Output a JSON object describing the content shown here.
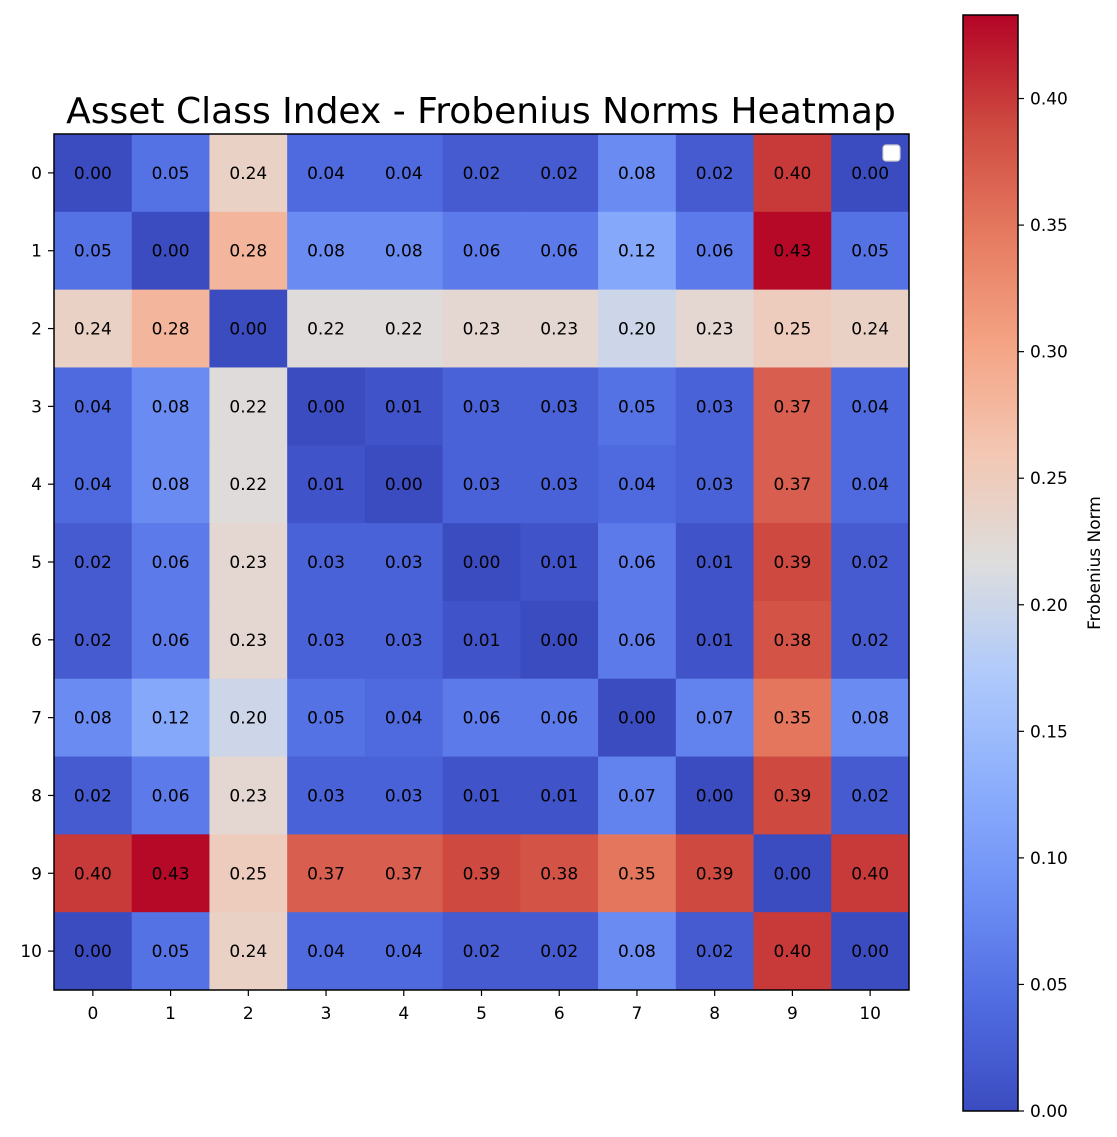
{
  "chart_data": {
    "type": "heatmap",
    "title": "Asset Class Index - Frobenius Norms Heatmap",
    "x_categories": [
      "0",
      "1",
      "2",
      "3",
      "4",
      "5",
      "6",
      "7",
      "8",
      "9",
      "10"
    ],
    "y_categories": [
      "0",
      "1",
      "2",
      "3",
      "4",
      "5",
      "6",
      "7",
      "8",
      "9",
      "10"
    ],
    "values": [
      [
        0.0,
        0.05,
        0.24,
        0.04,
        0.04,
        0.02,
        0.02,
        0.08,
        0.02,
        0.4,
        0.0
      ],
      [
        0.05,
        0.0,
        0.28,
        0.08,
        0.08,
        0.06,
        0.06,
        0.12,
        0.06,
        0.43,
        0.05
      ],
      [
        0.24,
        0.28,
        0.0,
        0.22,
        0.22,
        0.23,
        0.23,
        0.2,
        0.23,
        0.25,
        0.24
      ],
      [
        0.04,
        0.08,
        0.22,
        0.0,
        0.01,
        0.03,
        0.03,
        0.05,
        0.03,
        0.37,
        0.04
      ],
      [
        0.04,
        0.08,
        0.22,
        0.01,
        0.0,
        0.03,
        0.03,
        0.04,
        0.03,
        0.37,
        0.04
      ],
      [
        0.02,
        0.06,
        0.23,
        0.03,
        0.03,
        0.0,
        0.01,
        0.06,
        0.01,
        0.39,
        0.02
      ],
      [
        0.02,
        0.06,
        0.23,
        0.03,
        0.03,
        0.01,
        0.0,
        0.06,
        0.01,
        0.38,
        0.02
      ],
      [
        0.08,
        0.12,
        0.2,
        0.05,
        0.04,
        0.06,
        0.06,
        0.0,
        0.07,
        0.35,
        0.08
      ],
      [
        0.02,
        0.06,
        0.23,
        0.03,
        0.03,
        0.01,
        0.01,
        0.07,
        0.0,
        0.39,
        0.02
      ],
      [
        0.4,
        0.43,
        0.25,
        0.37,
        0.37,
        0.39,
        0.38,
        0.35,
        0.39,
        0.0,
        0.4
      ],
      [
        0.0,
        0.05,
        0.24,
        0.04,
        0.04,
        0.02,
        0.02,
        0.08,
        0.02,
        0.4,
        0.0
      ]
    ],
    "value_labels_format": "0.00",
    "colormap": "coolwarm",
    "color_range": [
      0.0,
      0.433
    ],
    "colorbar": {
      "label": "Frobenius Norm",
      "ticks": [
        0.0,
        0.05,
        0.1,
        0.15,
        0.2,
        0.25,
        0.3,
        0.35,
        0.4
      ],
      "tick_labels": [
        "0.00",
        "0.05",
        "0.10",
        "0.15",
        "0.20",
        "0.25",
        "0.30",
        "0.35",
        "0.40"
      ]
    },
    "legend": {
      "placement": "top-right",
      "entries": []
    }
  }
}
